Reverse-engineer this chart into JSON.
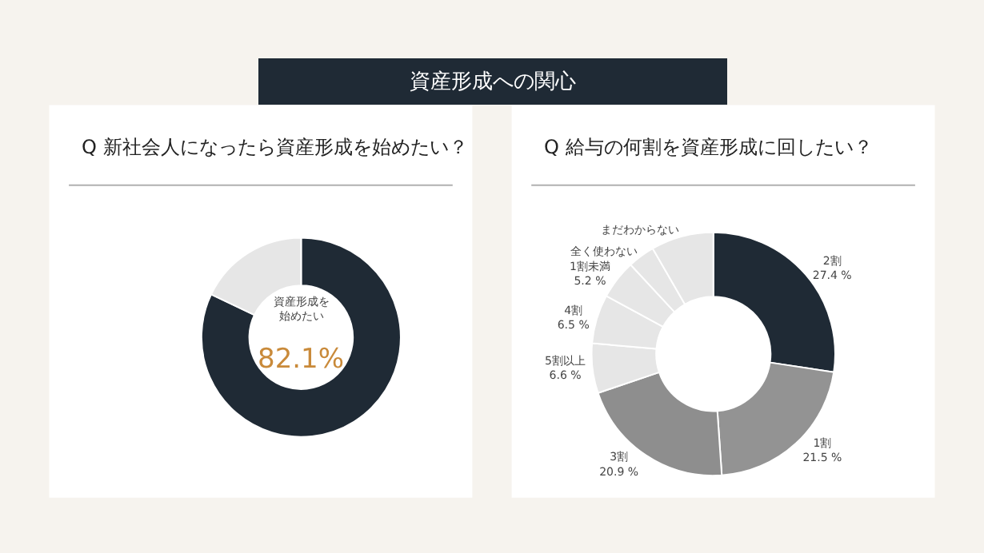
{
  "chart_data": [
    {
      "type": "donut",
      "title": "Q 新社会人になったら資産形成を始めたい？",
      "annotations": [
        "資産形成への関心"
      ],
      "categories": [
        "資産形成を始めたい",
        null
      ],
      "values": [
        82.1,
        17.9
      ],
      "colors": [
        "#1f2a35",
        "#e6e6e6"
      ],
      "value_labels": [
        "82.1%",
        null
      ]
    },
    {
      "type": "donut",
      "title": "Q 給与の何割を資産形成に回したい？",
      "categories": [
        "2割",
        "1割",
        "3割",
        "5割以上",
        "4割",
        "1割未満",
        "全く使わない",
        "まだわからない"
      ],
      "values": [
        27.4,
        21.5,
        20.9,
        6.6,
        6.5,
        5.2,
        3.6,
        8.3
      ],
      "colors": [
        "#1f2a35",
        "#939393",
        "#8e8e8e",
        "#e6e6e6",
        "#e6e6e6",
        "#e6e6e6",
        "#e6e6e6",
        "#e6e6e6"
      ],
      "value_labels": [
        "27.4 %",
        "21.5 %",
        "20.9 %",
        "6.6 %",
        "6.5 %",
        "5.2 %",
        null,
        null
      ]
    }
  ]
}
